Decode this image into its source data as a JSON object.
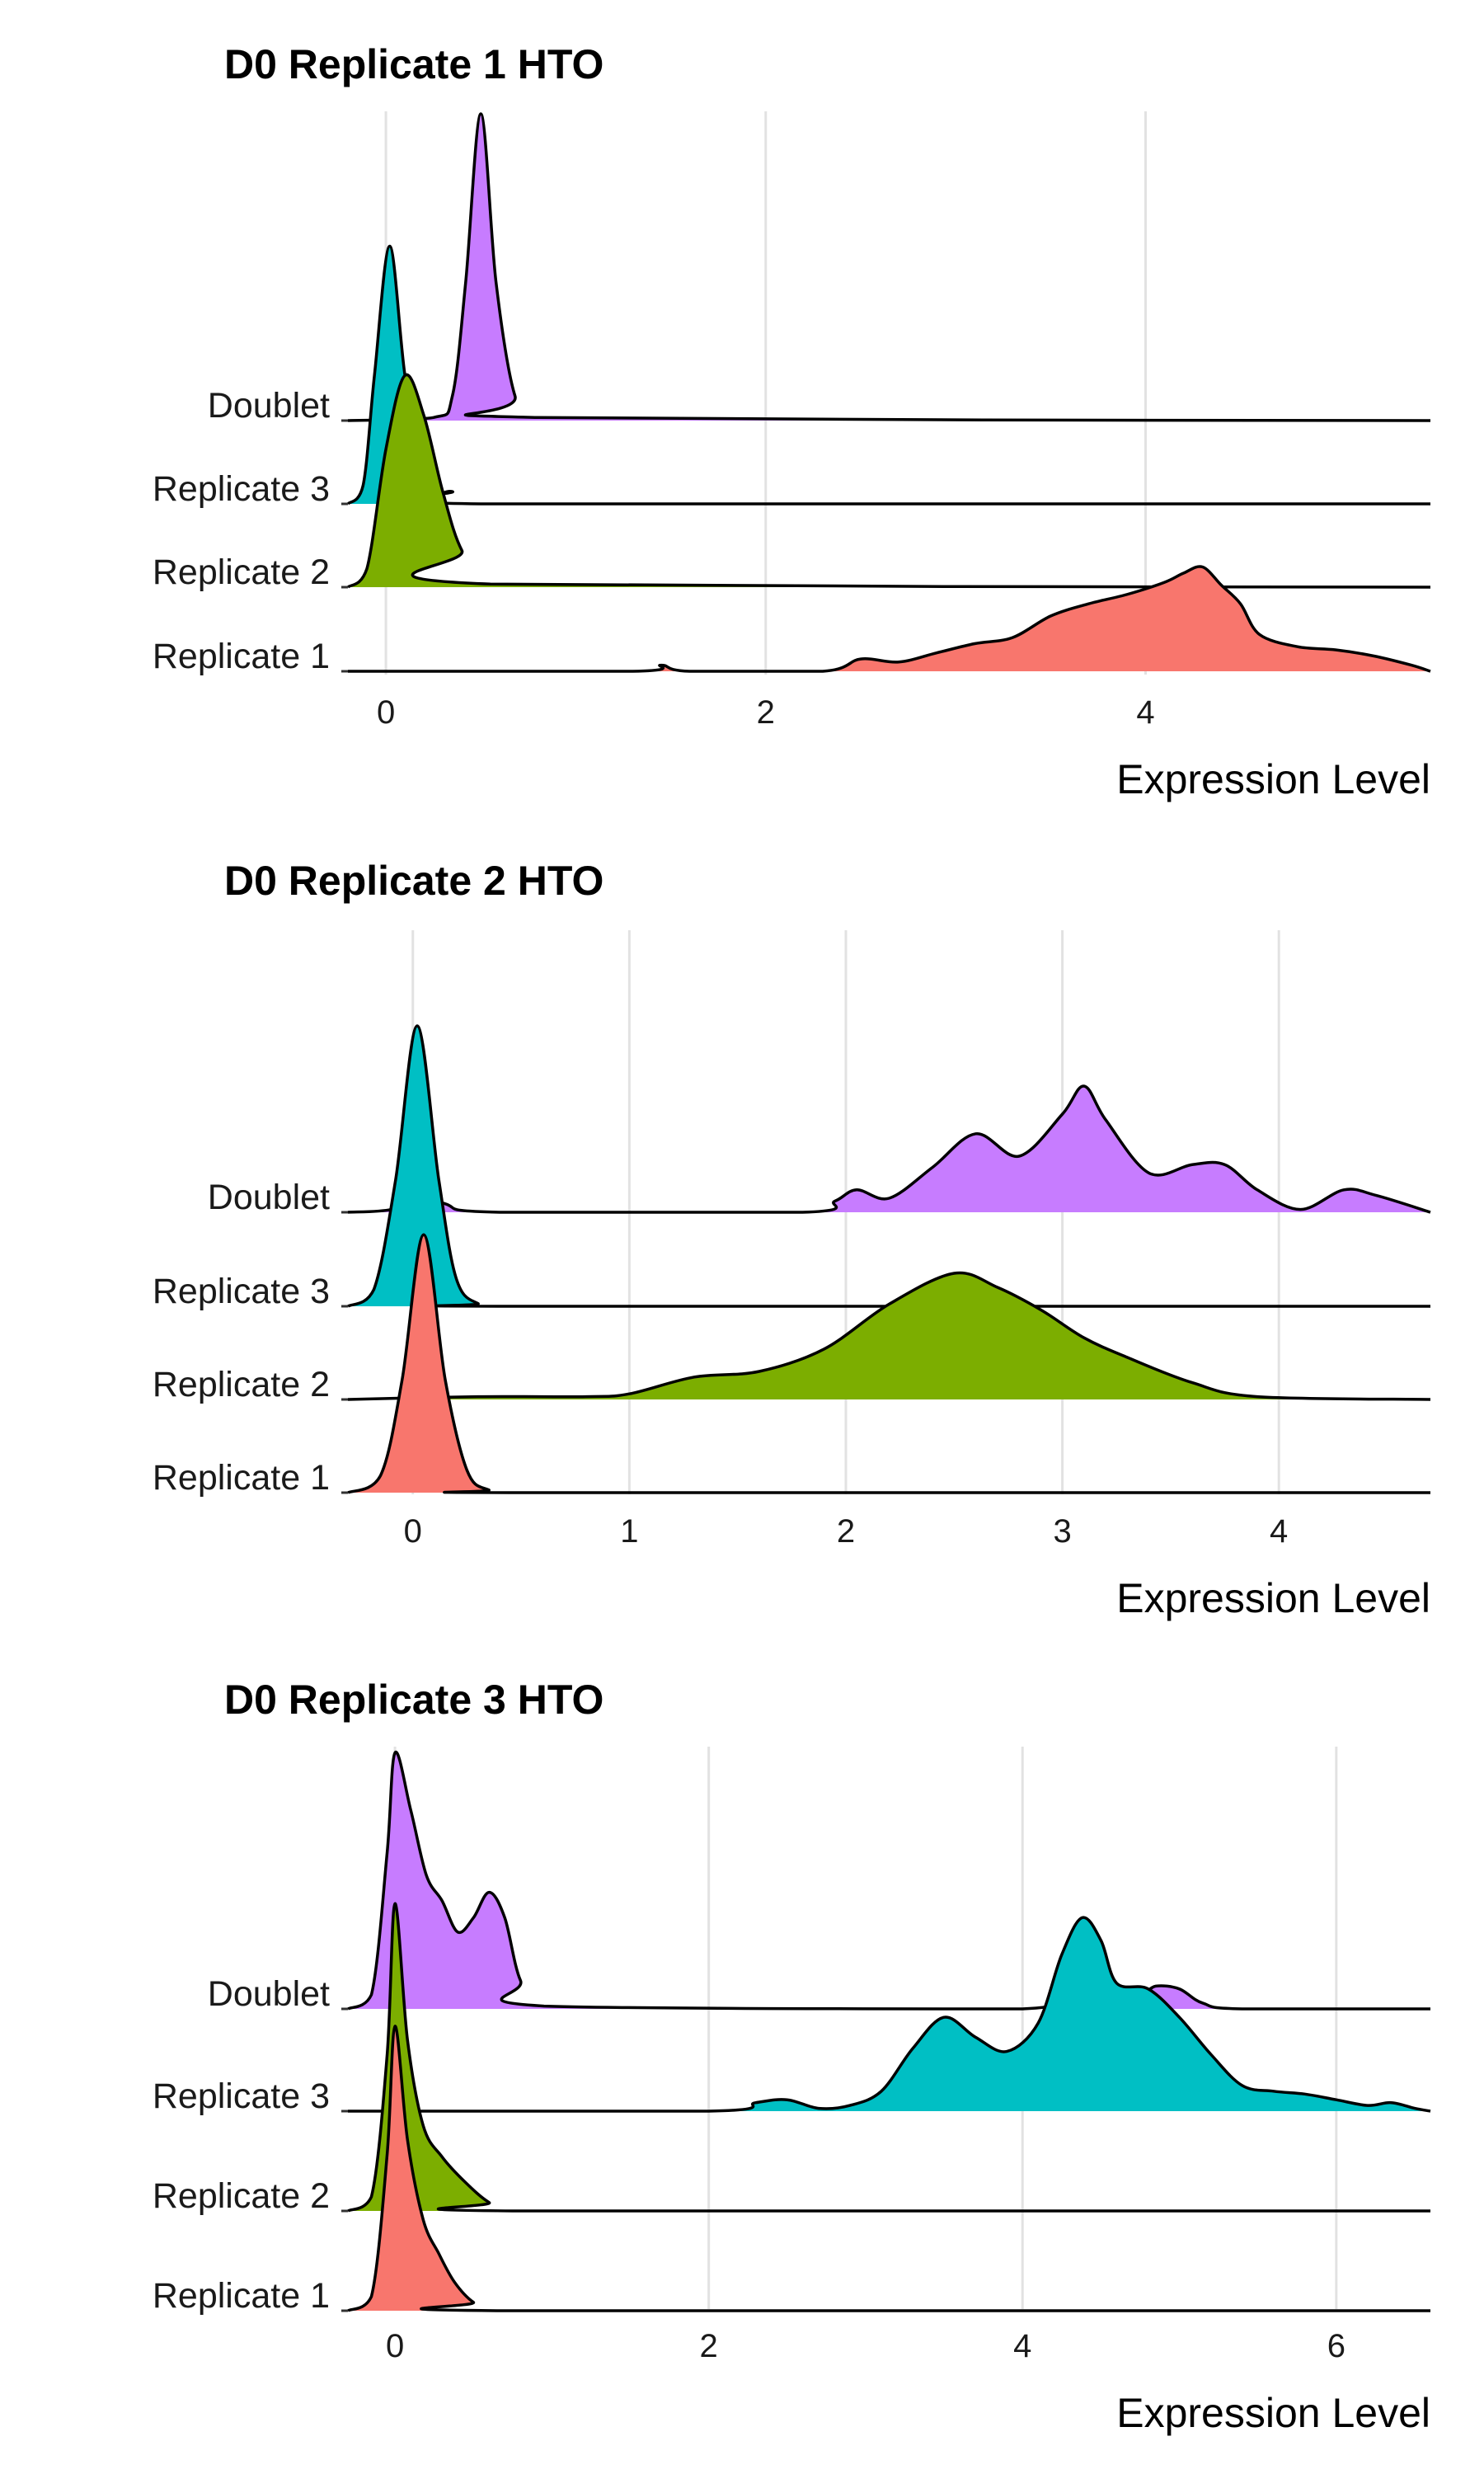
{
  "chart_data": [
    {
      "type": "ridgeline",
      "title": "D0 Replicate 1 HTO",
      "xlabel": "Expression Level",
      "xlim": [
        -0.2,
        5.5
      ],
      "xticks": [
        "0",
        "2",
        "4"
      ],
      "xtick_values": [
        0,
        2,
        4
      ],
      "grid": true,
      "categories": [
        "Doublet",
        "Replicate 3",
        "Replicate 2",
        "Replicate 1"
      ],
      "series": [
        {
          "name": "Doublet",
          "color": "#C77CFF",
          "points": [
            [
              -0.2,
              0
            ],
            [
              0.25,
              0.01
            ],
            [
              0.35,
              0.08
            ],
            [
              0.42,
              0.45
            ],
            [
              0.5,
              1.0
            ],
            [
              0.58,
              0.45
            ],
            [
              0.68,
              0.08
            ],
            [
              0.8,
              0.01
            ],
            [
              5.5,
              0
            ]
          ]
        },
        {
          "name": "Replicate 3",
          "color": "#00BFC4",
          "points": [
            [
              -0.2,
              0
            ],
            [
              -0.12,
              0.06
            ],
            [
              -0.06,
              0.42
            ],
            [
              0.02,
              0.84
            ],
            [
              0.1,
              0.42
            ],
            [
              0.2,
              0.05
            ],
            [
              0.35,
              0.04
            ],
            [
              0.5,
              0
            ],
            [
              5.5,
              0
            ]
          ]
        },
        {
          "name": "Replicate 2",
          "color": "#7CAE00",
          "points": [
            [
              -0.2,
              0
            ],
            [
              -0.1,
              0.06
            ],
            [
              0,
              0.45
            ],
            [
              0.1,
              0.69
            ],
            [
              0.2,
              0.56
            ],
            [
              0.3,
              0.31
            ],
            [
              0.4,
              0.12
            ],
            [
              0.55,
              0.01
            ],
            [
              5.5,
              0
            ]
          ]
        },
        {
          "name": "Replicate 1",
          "color": "#F8766D",
          "points": [
            [
              -0.2,
              0
            ],
            [
              1.3,
              0
            ],
            [
              1.45,
              0.02
            ],
            [
              1.6,
              0
            ],
            [
              2.3,
              0
            ],
            [
              2.5,
              0.04
            ],
            [
              2.7,
              0.03
            ],
            [
              2.9,
              0.06
            ],
            [
              3.1,
              0.09
            ],
            [
              3.3,
              0.11
            ],
            [
              3.5,
              0.18
            ],
            [
              3.7,
              0.22
            ],
            [
              3.9,
              0.25
            ],
            [
              4.1,
              0.29
            ],
            [
              4.2,
              0.32
            ],
            [
              4.3,
              0.34
            ],
            [
              4.4,
              0.28
            ],
            [
              4.5,
              0.22
            ],
            [
              4.6,
              0.12
            ],
            [
              4.8,
              0.08
            ],
            [
              5.0,
              0.07
            ],
            [
              5.2,
              0.05
            ],
            [
              5.4,
              0.02
            ],
            [
              5.5,
              0
            ]
          ]
        }
      ]
    },
    {
      "type": "ridgeline",
      "title": "D0 Replicate 2 HTO",
      "xlabel": "Expression Level",
      "xlim": [
        -0.3,
        4.7
      ],
      "xticks": [
        "0",
        "1",
        "2",
        "3",
        "4"
      ],
      "xtick_values": [
        0,
        1,
        2,
        3,
        4
      ],
      "grid": true,
      "categories": [
        "Doublet",
        "Replicate 3",
        "Replicate 2",
        "Replicate 1"
      ],
      "series": [
        {
          "name": "Doublet",
          "color": "#C77CFF",
          "points": [
            [
              -0.3,
              0
            ],
            [
              -0.1,
              0.01
            ],
            [
              0,
              0.1
            ],
            [
              0.15,
              0.03
            ],
            [
              0.4,
              0
            ],
            [
              1.8,
              0
            ],
            [
              1.95,
              0.04
            ],
            [
              2.05,
              0.08
            ],
            [
              2.2,
              0.05
            ],
            [
              2.4,
              0.16
            ],
            [
              2.6,
              0.28
            ],
            [
              2.8,
              0.2
            ],
            [
              3.0,
              0.35
            ],
            [
              3.1,
              0.45
            ],
            [
              3.2,
              0.33
            ],
            [
              3.4,
              0.14
            ],
            [
              3.6,
              0.17
            ],
            [
              3.75,
              0.17
            ],
            [
              3.9,
              0.08
            ],
            [
              4.1,
              0.01
            ],
            [
              4.3,
              0.08
            ],
            [
              4.45,
              0.06
            ],
            [
              4.7,
              0
            ]
          ]
        },
        {
          "name": "Replicate 3",
          "color": "#00BFC4",
          "points": [
            [
              -0.3,
              0
            ],
            [
              -0.18,
              0.06
            ],
            [
              -0.08,
              0.45
            ],
            [
              0.02,
              1.0
            ],
            [
              0.12,
              0.45
            ],
            [
              0.2,
              0.1
            ],
            [
              0.3,
              0.01
            ],
            [
              0.45,
              0
            ],
            [
              4.7,
              0
            ]
          ]
        },
        {
          "name": "Replicate 2",
          "color": "#7CAE00",
          "points": [
            [
              -0.3,
              0
            ],
            [
              0.3,
              0.01
            ],
            [
              0.8,
              0.01
            ],
            [
              1.0,
              0.02
            ],
            [
              1.3,
              0.08
            ],
            [
              1.6,
              0.1
            ],
            [
              1.9,
              0.18
            ],
            [
              2.2,
              0.34
            ],
            [
              2.5,
              0.45
            ],
            [
              2.7,
              0.4
            ],
            [
              2.9,
              0.32
            ],
            [
              3.1,
              0.22
            ],
            [
              3.3,
              0.15
            ],
            [
              3.6,
              0.06
            ],
            [
              3.9,
              0.01
            ],
            [
              4.7,
              0
            ]
          ]
        },
        {
          "name": "Replicate 1",
          "color": "#F8766D",
          "points": [
            [
              -0.3,
              0
            ],
            [
              -0.15,
              0.06
            ],
            [
              -0.05,
              0.4
            ],
            [
              0.05,
              0.92
            ],
            [
              0.15,
              0.4
            ],
            [
              0.25,
              0.08
            ],
            [
              0.35,
              0.01
            ],
            [
              0.5,
              0
            ],
            [
              4.7,
              0
            ]
          ]
        }
      ]
    },
    {
      "type": "ridgeline",
      "title": "D0 Replicate 3 HTO",
      "xlabel": "Expression Level",
      "xlim": [
        -0.3,
        6.6
      ],
      "xticks": [
        "0",
        "2",
        "4",
        "6"
      ],
      "xtick_values": [
        0,
        2,
        4,
        6
      ],
      "grid": true,
      "categories": [
        "Doublet",
        "Replicate 3",
        "Replicate 2",
        "Replicate 1"
      ],
      "series": [
        {
          "name": "Doublet",
          "color": "#C77CFF",
          "points": [
            [
              -0.3,
              0
            ],
            [
              -0.15,
              0.05
            ],
            [
              -0.05,
              0.55
            ],
            [
              0,
              0.9
            ],
            [
              0.1,
              0.7
            ],
            [
              0.2,
              0.47
            ],
            [
              0.3,
              0.38
            ],
            [
              0.4,
              0.27
            ],
            [
              0.5,
              0.32
            ],
            [
              0.6,
              0.41
            ],
            [
              0.7,
              0.32
            ],
            [
              0.8,
              0.1
            ],
            [
              0.95,
              0.01
            ],
            [
              4.0,
              0
            ],
            [
              4.3,
              0.1
            ],
            [
              4.5,
              0.12
            ],
            [
              4.6,
              0.08
            ],
            [
              4.75,
              0.05
            ],
            [
              4.85,
              0.08
            ],
            [
              5.0,
              0.07
            ],
            [
              5.15,
              0.02
            ],
            [
              5.4,
              0
            ],
            [
              6.6,
              0
            ]
          ]
        },
        {
          "name": "Replicate 3",
          "color": "#00BFC4",
          "points": [
            [
              -0.3,
              0
            ],
            [
              2.0,
              0
            ],
            [
              2.3,
              0.03
            ],
            [
              2.5,
              0.04
            ],
            [
              2.7,
              0.01
            ],
            [
              2.9,
              0.02
            ],
            [
              3.1,
              0.07
            ],
            [
              3.3,
              0.22
            ],
            [
              3.5,
              0.33
            ],
            [
              3.7,
              0.26
            ],
            [
              3.9,
              0.21
            ],
            [
              4.1,
              0.31
            ],
            [
              4.25,
              0.55
            ],
            [
              4.38,
              0.68
            ],
            [
              4.5,
              0.6
            ],
            [
              4.6,
              0.45
            ],
            [
              4.8,
              0.43
            ],
            [
              5.0,
              0.33
            ],
            [
              5.2,
              0.2
            ],
            [
              5.4,
              0.09
            ],
            [
              5.6,
              0.07
            ],
            [
              5.8,
              0.06
            ],
            [
              6.0,
              0.04
            ],
            [
              6.2,
              0.02
            ],
            [
              6.35,
              0.03
            ],
            [
              6.5,
              0.01
            ],
            [
              6.6,
              0
            ]
          ]
        },
        {
          "name": "Replicate 2",
          "color": "#7CAE00",
          "points": [
            [
              -0.3,
              0
            ],
            [
              -0.15,
              0.05
            ],
            [
              -0.05,
              0.55
            ],
            [
              0.0,
              1.08
            ],
            [
              0.08,
              0.6
            ],
            [
              0.18,
              0.3
            ],
            [
              0.3,
              0.19
            ],
            [
              0.45,
              0.1
            ],
            [
              0.6,
              0.03
            ],
            [
              0.75,
              0
            ],
            [
              6.6,
              0
            ]
          ]
        },
        {
          "name": "Replicate 1",
          "color": "#F8766D",
          "points": [
            [
              -0.3,
              0
            ],
            [
              -0.15,
              0.05
            ],
            [
              -0.05,
              0.55
            ],
            [
              0.0,
              1.0
            ],
            [
              0.08,
              0.6
            ],
            [
              0.18,
              0.32
            ],
            [
              0.28,
              0.2
            ],
            [
              0.38,
              0.1
            ],
            [
              0.5,
              0.03
            ],
            [
              0.65,
              0
            ],
            [
              6.6,
              0
            ]
          ]
        }
      ]
    }
  ]
}
